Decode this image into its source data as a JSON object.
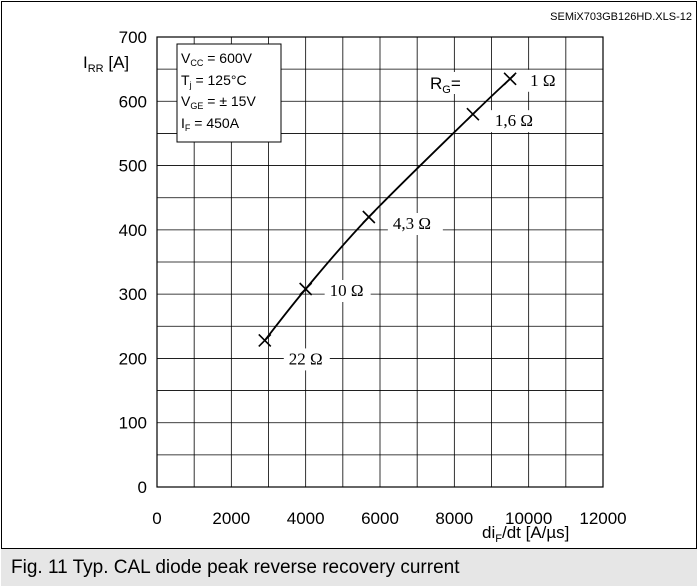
{
  "doc_id": "SEMiX703GB126HD.XLS-12",
  "caption": "Fig. 11 Typ. CAL diode peak reverse recovery current",
  "chart_data": {
    "type": "line",
    "title": "",
    "xlabel": "diF/dt [A/µs]",
    "ylabel": "IRR [A]",
    "xlim": [
      0,
      12000
    ],
    "ylim": [
      0,
      700
    ],
    "x_ticks": [
      0,
      2000,
      4000,
      6000,
      8000,
      10000,
      12000
    ],
    "y_ticks": [
      0,
      100,
      200,
      300,
      400,
      500,
      600,
      700
    ],
    "grid": true,
    "series": [
      {
        "name": "",
        "x": [
          2900,
          4000,
          5700,
          8500,
          9500
        ],
        "y": [
          228,
          308,
          420,
          580,
          635
        ],
        "point_labels": [
          "22 Ω",
          "10 Ω",
          "4,3 Ω",
          "1,6 Ω",
          "1 Ω"
        ]
      }
    ],
    "series_label": "RG=",
    "conditions": [
      "VCC = 600V",
      "Tj = 125°C",
      "VGE = ± 15V",
      "IF = 450A"
    ]
  }
}
